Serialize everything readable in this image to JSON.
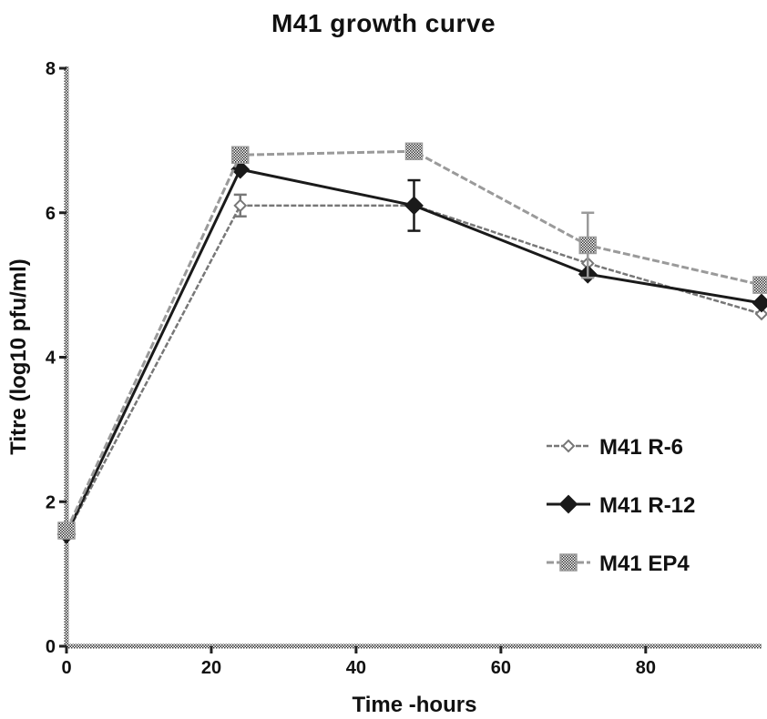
{
  "chart_data": {
    "type": "line",
    "title": "M41 growth curve",
    "xlabel": "Time -hours",
    "ylabel": "Titre (log10 pfu/ml)",
    "xlim": [
      0,
      96
    ],
    "ylim": [
      0,
      8
    ],
    "xticks": [
      0,
      20,
      40,
      60,
      80
    ],
    "yticks": [
      0,
      2,
      4,
      6,
      8
    ],
    "grid": false,
    "legend_position": "right",
    "series": [
      {
        "name": "M41 R-6",
        "marker": "small-diamond",
        "color": "#777777",
        "x": [
          0,
          24,
          48,
          72,
          96
        ],
        "y": [
          1.55,
          6.1,
          6.1,
          5.3,
          4.6
        ],
        "error": [
          0,
          0.15,
          0,
          0.15,
          0
        ]
      },
      {
        "name": "M41 R-12",
        "marker": "diamond",
        "color": "#1a1a1a",
        "x": [
          0,
          24,
          48,
          72,
          96
        ],
        "y": [
          1.55,
          6.6,
          6.1,
          5.15,
          4.75
        ],
        "error": [
          0,
          0,
          0.35,
          0,
          0
        ]
      },
      {
        "name": "M41 EP4",
        "marker": "square",
        "color": "#9a9a9a",
        "x": [
          0,
          24,
          48,
          72,
          96
        ],
        "y": [
          1.6,
          6.8,
          6.85,
          5.55,
          5.0
        ],
        "error": [
          0,
          0,
          0,
          0.45,
          0
        ]
      }
    ]
  }
}
